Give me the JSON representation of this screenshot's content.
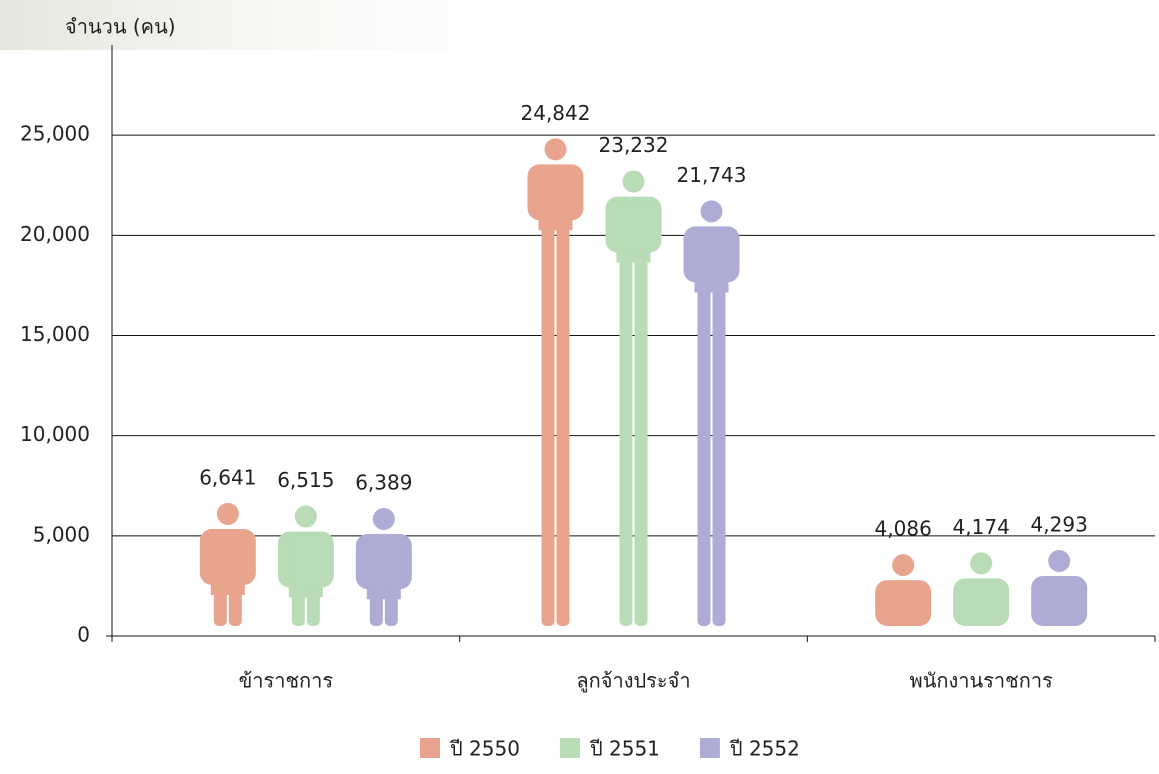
{
  "chart_data": {
    "type": "pictograph",
    "y_axis_label": "จำนวน (คน)",
    "categories": [
      "ข้าราชการ",
      "ลูกจ้างประจำ",
      "พนักงานราชการ"
    ],
    "series": [
      {
        "name": "ปี 2550",
        "color": "#e9a48e",
        "values": [
          6641,
          24842,
          4086
        ],
        "value_labels": [
          "6,641",
          "24,842",
          "4,086"
        ]
      },
      {
        "name": "ปี 2551",
        "color": "#b9dbb5",
        "values": [
          6515,
          23232,
          4174
        ],
        "value_labels": [
          "6,515",
          "23,232",
          "4,174"
        ]
      },
      {
        "name": "ปี 2552",
        "color": "#aeabd4",
        "values": [
          6389,
          21743,
          4293
        ],
        "value_labels": [
          "6,389",
          "21,743",
          "4,293"
        ]
      }
    ],
    "ylim": [
      0,
      29500
    ],
    "yticks": [
      0,
      {
        "value": 5000,
        "label": "5,000"
      },
      {
        "value": 10000,
        "label": "10,000"
      },
      {
        "value": 15000,
        "label": "15,000"
      },
      {
        "value": 20000,
        "label": "20,000"
      },
      {
        "value": 25000,
        "label": "25,000"
      }
    ],
    "grid": true,
    "legend": "bottom"
  }
}
